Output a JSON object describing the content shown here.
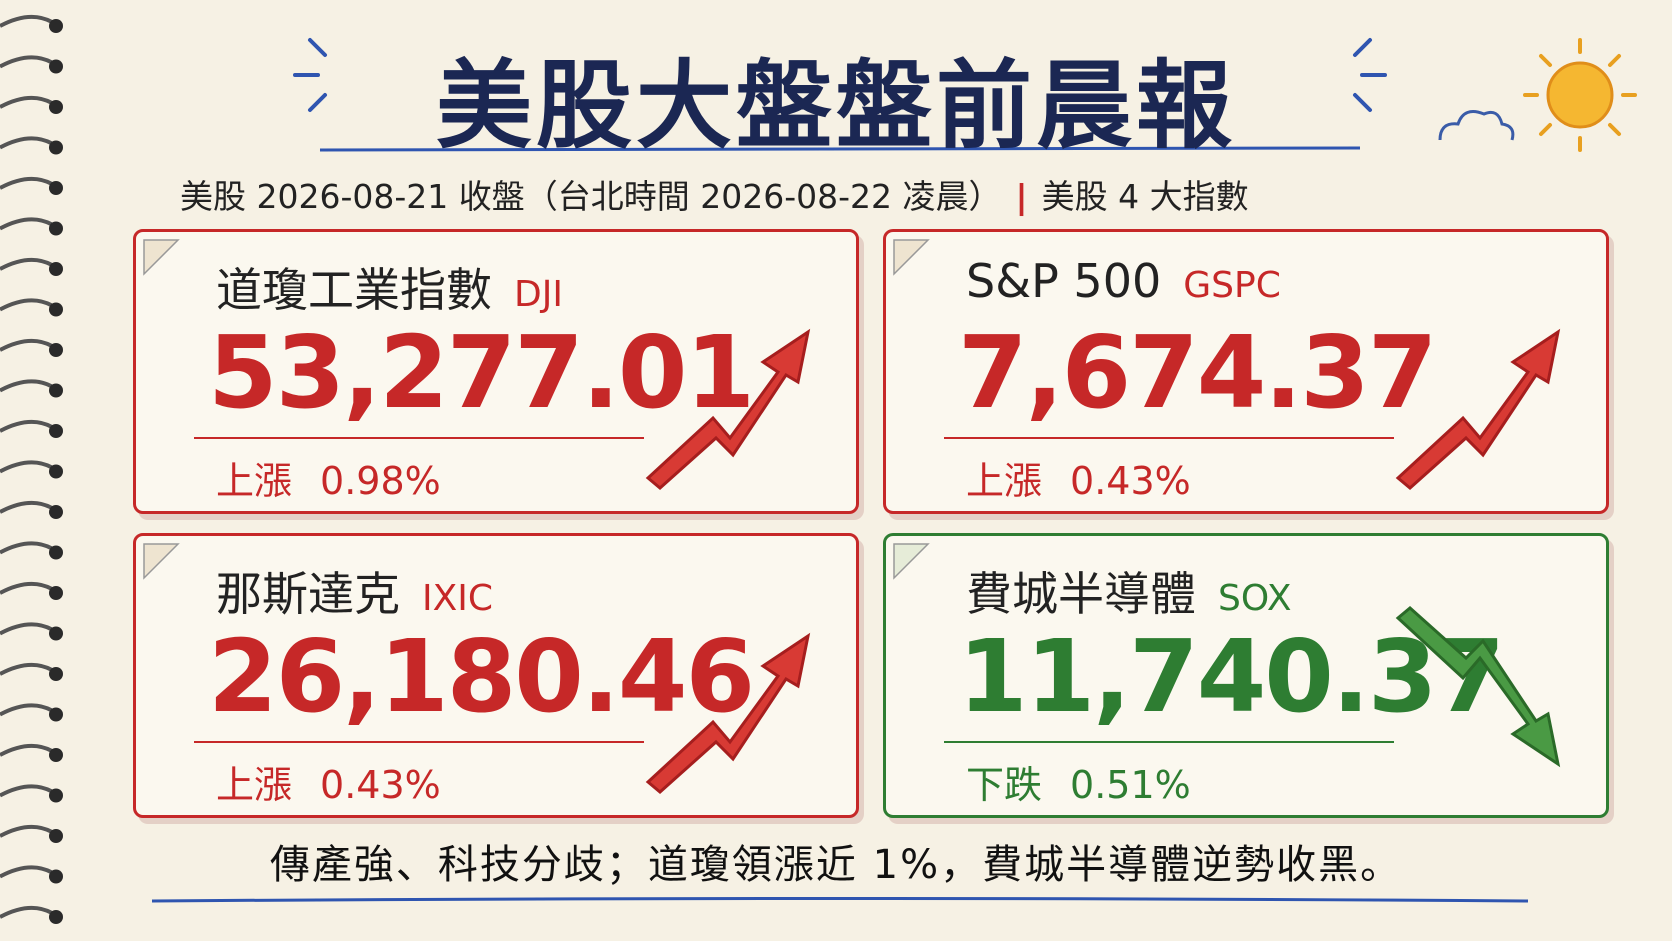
{
  "header": {
    "title": "美股大盤盤前晨報",
    "subtitle": "美股 2026-08-21 收盤（台北時間 2026-08-22 凌晨）",
    "tag": "美股 4 大指數"
  },
  "cards": [
    {
      "name": "道瓊工業指數",
      "code": "DJI",
      "value": "53,277.01",
      "direction": "上漲",
      "change": "0.98%",
      "color": "#c62828"
    },
    {
      "name": "S&P 500",
      "code": "GSPC",
      "value": "7,674.37",
      "direction": "上漲",
      "change": "0.43%",
      "color": "#c62828"
    },
    {
      "name": "那斯達克",
      "code": "IXIC",
      "value": "26,180.46",
      "direction": "上漲",
      "change": "0.43%",
      "color": "#c62828"
    },
    {
      "name": "費城半導體",
      "code": "SOX",
      "value": "11,740.37",
      "direction": "下跌",
      "change": "0.51%",
      "color": "#2e7d32"
    }
  ],
  "footer": "傳產強、科技分歧；道瓊領漲近 1%，費城半導體逆勢收黑。"
}
